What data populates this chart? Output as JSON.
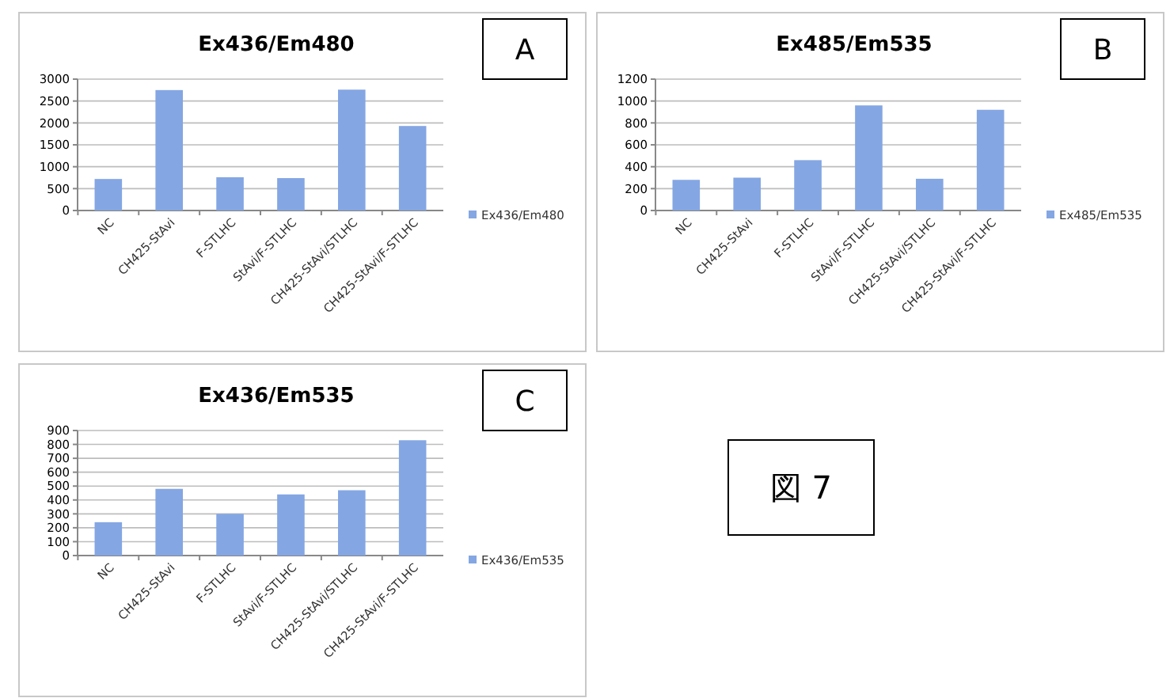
{
  "chart_data": [
    {
      "type": "bar",
      "title": "Ex436/Em480",
      "categories": [
        "NC",
        "CH425-StAvi",
        "F-STLHC",
        "StAvi/F-STLHC",
        "CH425-StAvi/STLHC",
        "CH425-StAvi/F-STLHC"
      ],
      "series": [
        {
          "name": "Ex436/Em480",
          "color": "#84a6e3",
          "values": [
            720,
            2750,
            760,
            740,
            2760,
            1930
          ]
        }
      ],
      "ylim": [
        0,
        3000
      ],
      "yticks": [
        0,
        500,
        1000,
        1500,
        2000,
        2500,
        3000
      ],
      "grid": "y",
      "legend": "right",
      "annotations": [
        "A"
      ]
    },
    {
      "type": "bar",
      "title": "Ex485/Em535",
      "categories": [
        "NC",
        "CH425-StAvi",
        "F-STLHC",
        "StAvi/F-STLHC",
        "CH425-StAvi/STLHC",
        "CH425-StAvi/F-STLHC"
      ],
      "series": [
        {
          "name": "Ex485/Em535",
          "color": "#84a6e3",
          "values": [
            280,
            300,
            460,
            960,
            290,
            920
          ]
        }
      ],
      "ylim": [
        0,
        1200
      ],
      "yticks": [
        0,
        200,
        400,
        600,
        800,
        1000,
        1200
      ],
      "grid": "y",
      "legend": "right",
      "annotations": [
        "B"
      ]
    },
    {
      "type": "bar",
      "title": "Ex436/Em535",
      "categories": [
        "NC",
        "CH425-StAvi",
        "F-STLHC",
        "StAvi/F-STLHC",
        "CH425-StAvi/STLHC",
        "CH425-StAvi/F-STLHC"
      ],
      "series": [
        {
          "name": "Ex436/Em535",
          "color": "#84a6e3",
          "values": [
            240,
            480,
            300,
            440,
            470,
            830
          ]
        }
      ],
      "ylim": [
        0,
        900
      ],
      "yticks": [
        0,
        100,
        200,
        300,
        400,
        500,
        600,
        700,
        800,
        900
      ],
      "grid": "y",
      "legend": "right",
      "annotations": [
        "C"
      ]
    },
    {
      "type": "other",
      "annotations": [
        "図 7"
      ]
    }
  ]
}
